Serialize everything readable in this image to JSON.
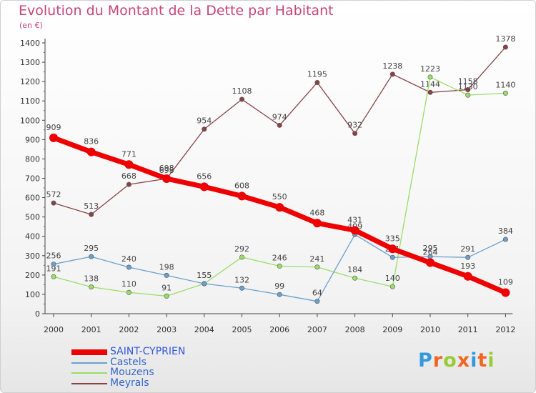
{
  "title": "Evolution du Montant de la Dette par Habitant",
  "unit_label": "(en €)",
  "logo": "Proxiti",
  "chart_data": {
    "type": "line",
    "title": "Evolution du Montant de la Dette par Habitant",
    "ylabel": "(en €)",
    "xlabel": "",
    "x": [
      "2000",
      "2001",
      "2002",
      "2003",
      "2004",
      "2005",
      "2006",
      "2007",
      "2008",
      "2009",
      "2010",
      "2011",
      "2012"
    ],
    "ylim": [
      0,
      1400
    ],
    "yticks": [
      0,
      100,
      200,
      300,
      400,
      500,
      600,
      700,
      800,
      900,
      1000,
      1100,
      1200,
      1300,
      1400
    ],
    "grid": false,
    "legend": "bottom-left",
    "series": [
      {
        "name": "SAINT-CYPRIEN",
        "color": "#ee0000",
        "values": [
          909,
          836,
          771,
          698,
          656,
          608,
          550,
          468,
          431,
          335,
          264,
          193,
          109
        ]
      },
      {
        "name": "Castels",
        "color": "#6aa0cc",
        "values": [
          256,
          295,
          240,
          198,
          155,
          132,
          99,
          64,
          409,
          291,
          295,
          291,
          384
        ]
      },
      {
        "name": "Mouzens",
        "color": "#99dd66",
        "values": [
          191,
          138,
          110,
          91,
          155,
          292,
          246,
          241,
          184,
          140,
          1223,
          1130,
          1140
        ]
      },
      {
        "name": "Meyrals",
        "color": "#884444",
        "values": [
          572,
          513,
          668,
          698,
          954,
          1108,
          974,
          1195,
          932,
          1238,
          1144,
          1158,
          1378
        ]
      }
    ]
  }
}
